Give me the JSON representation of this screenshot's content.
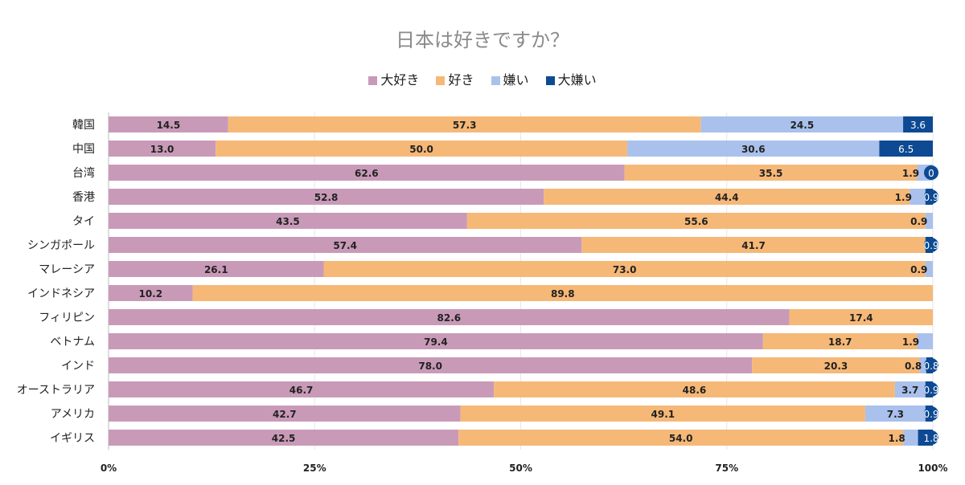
{
  "chart_data": {
    "type": "bar",
    "orientation": "horizontal",
    "stacked": "percent",
    "title": "日本は好きですか？",
    "legend_position": "top",
    "categories": [
      "韓国",
      "中国",
      "台湾",
      "香港",
      "タイ",
      "シンガポール",
      "マレーシア",
      "インドネシア",
      "フィリピン",
      "ベトナム",
      "インド",
      "オーストラリア",
      "アメリカ",
      "イギリス"
    ],
    "series": [
      {
        "name": "大好き",
        "color": "#c99ab8",
        "values": [
          14.5,
          13.0,
          62.6,
          52.8,
          43.5,
          57.4,
          26.1,
          10.2,
          82.6,
          79.4,
          78.0,
          46.7,
          42.7,
          42.5
        ]
      },
      {
        "name": "好き",
        "color": "#f6b877",
        "values": [
          57.3,
          50.0,
          35.5,
          44.4,
          55.6,
          41.7,
          73.0,
          89.8,
          17.4,
          18.7,
          20.3,
          48.6,
          49.1,
          54.0
        ]
      },
      {
        "name": "嫌い",
        "color": "#a9c1ec",
        "values": [
          24.5,
          30.6,
          1.9,
          1.9,
          0.9,
          null,
          0.9,
          null,
          null,
          1.9,
          0.8,
          3.7,
          7.3,
          1.8
        ]
      },
      {
        "name": "大嫌い",
        "color": "#0d4a93",
        "values": [
          3.6,
          6.5,
          0,
          0.9,
          null,
          0.9,
          null,
          null,
          null,
          null,
          0.8,
          0.9,
          0.9,
          1.8
        ]
      }
    ],
    "x_ticks": [
      "0%",
      "25%",
      "50%",
      "75%",
      "100%"
    ],
    "xlim": [
      0,
      100
    ],
    "grid": true
  }
}
